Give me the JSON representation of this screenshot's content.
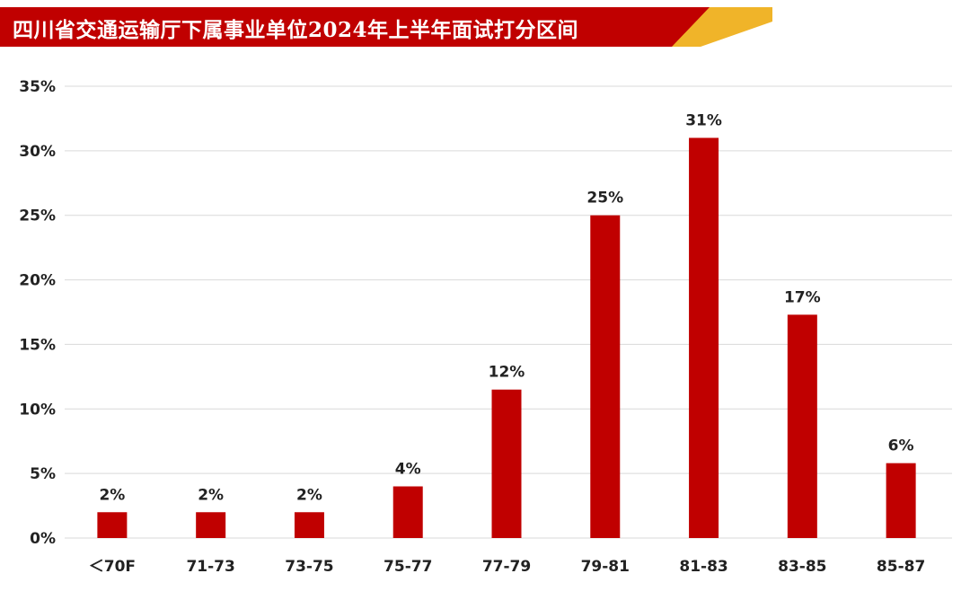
{
  "chart_data": {
    "type": "bar",
    "title": "四川省交通运输厅下属事业单位2024年上半年面试打分区间",
    "categories": [
      "＜70F",
      "71-73",
      "73-75",
      "75-77",
      "77-79",
      "79-81",
      "81-83",
      "83-85",
      "85-87"
    ],
    "values": [
      2,
      2,
      2,
      4,
      11.5,
      25,
      31,
      17.3,
      5.8
    ],
    "data_labels": [
      "2%",
      "2%",
      "2%",
      "4%",
      "12%",
      "25%",
      "31%",
      "17%",
      "6%"
    ],
    "ylim": [
      0,
      35
    ],
    "yticks": [
      0,
      5,
      10,
      15,
      20,
      25,
      30,
      35
    ],
    "ytick_labels": [
      "0%",
      "5%",
      "10%",
      "15%",
      "20%",
      "25%",
      "30%",
      "35%"
    ],
    "xlabel": "",
    "ylabel": "",
    "grid": true,
    "colors": {
      "bar": "#c00000",
      "grid": "#d9d9d9",
      "banner": "#c00000",
      "banner_accent": "#e6a817"
    }
  }
}
